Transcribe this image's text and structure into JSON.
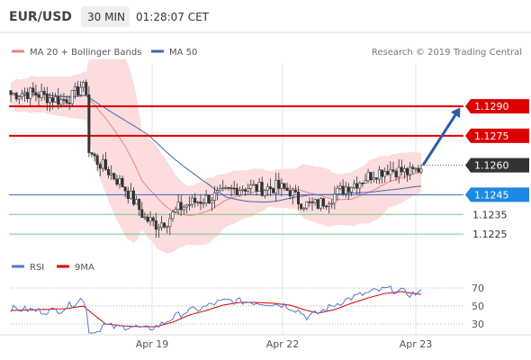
{
  "header": {
    "pair": "EUR/USD",
    "timeframe": "30 MIN",
    "time": "01:28:07 CET"
  },
  "legend": {
    "bollinger_label": "MA 20 + Bollinger Bands",
    "ma50_label": "MA 50",
    "rsi_label": "RSI",
    "rsi_ma_label": "9MA"
  },
  "credit": "Research © 2019 Trading Central",
  "colors": {
    "resistance": "#dd0000",
    "support": "#7cc77c",
    "pivot": "#3366cc",
    "pivot_badge": "#1e88e5",
    "price_badge": "#333333",
    "bollinger_fill": "#fcdcdc",
    "ma20": "#f08080",
    "ma50": "#4466aa",
    "forecast_arrow": "#2a5caa",
    "rsi": "#5577cc",
    "rsi_ma": "#dd0000"
  },
  "chart_data": [
    {
      "type": "candlestick",
      "title": "EUR/USD",
      "x_ticks": [
        "Apr 19",
        "Apr 22",
        "Apr 23"
      ],
      "ylim": [
        1.1215,
        1.1312
      ],
      "levels": [
        {
          "value": 1.129,
          "label": "1.1290",
          "role": "resistance"
        },
        {
          "value": 1.1275,
          "label": "1.1275",
          "role": "resistance"
        },
        {
          "value": 1.126,
          "label": "1.1260",
          "role": "last_price"
        },
        {
          "value": 1.1245,
          "label": "1.1245",
          "role": "pivot"
        },
        {
          "value": 1.1235,
          "label": "1.1235",
          "role": "support"
        },
        {
          "value": 1.1225,
          "label": "1.1225",
          "role": "support"
        }
      ],
      "forecast": {
        "from": 1.126,
        "to": 1.129
      },
      "close_anchors": [
        [
          0,
          1.1296
        ],
        [
          5,
          1.1297
        ],
        [
          10,
          1.1296
        ],
        [
          15,
          1.1294
        ],
        [
          18,
          1.1293
        ],
        [
          22,
          1.1295
        ],
        [
          25,
          1.13
        ],
        [
          27,
          1.1298
        ],
        [
          28,
          1.1267
        ],
        [
          31,
          1.1262
        ],
        [
          35,
          1.1257
        ],
        [
          40,
          1.125
        ],
        [
          45,
          1.124
        ],
        [
          48,
          1.1233
        ],
        [
          52,
          1.123
        ],
        [
          56,
          1.1232
        ],
        [
          60,
          1.1238
        ],
        [
          65,
          1.1241
        ],
        [
          70,
          1.1243
        ],
        [
          75,
          1.1245
        ],
        [
          80,
          1.1248
        ],
        [
          85,
          1.1249
        ],
        [
          90,
          1.1248
        ],
        [
          95,
          1.1249
        ],
        [
          100,
          1.1247
        ],
        [
          103,
          1.1242
        ],
        [
          106,
          1.124
        ],
        [
          110,
          1.124
        ],
        [
          115,
          1.1244
        ],
        [
          120,
          1.1249
        ],
        [
          125,
          1.1252
        ],
        [
          130,
          1.1256
        ],
        [
          135,
          1.1258
        ],
        [
          140,
          1.1257
        ],
        [
          143,
          1.1256
        ],
        [
          147,
          1.1259
        ]
      ],
      "candle_count": 148
    },
    {
      "type": "line",
      "title": "RSI",
      "ylim": [
        20,
        80
      ],
      "y_ticks": [
        70,
        50,
        30
      ],
      "series": [
        {
          "name": "RSI",
          "role": "rsi",
          "values": [
            [
              0,
              47
            ],
            [
              6,
              46
            ],
            [
              12,
              44
            ],
            [
              18,
              46
            ],
            [
              22,
              52
            ],
            [
              25,
              58
            ],
            [
              27,
              50
            ],
            [
              28,
              22
            ],
            [
              30,
              18
            ],
            [
              33,
              29
            ],
            [
              38,
              26
            ],
            [
              43,
              28
            ],
            [
              48,
              24
            ],
            [
              53,
              28
            ],
            [
              58,
              37
            ],
            [
              63,
              44
            ],
            [
              68,
              47
            ],
            [
              73,
              53
            ],
            [
              78,
              56
            ],
            [
              83,
              55
            ],
            [
              88,
              54
            ],
            [
              93,
              53
            ],
            [
              98,
              51
            ],
            [
              103,
              45
            ],
            [
              106,
              38
            ],
            [
              110,
              42
            ],
            [
              115,
              50
            ],
            [
              120,
              57
            ],
            [
              125,
              62
            ],
            [
              130,
              66
            ],
            [
              135,
              69
            ],
            [
              140,
              66
            ],
            [
              143,
              63
            ],
            [
              147,
              65
            ]
          ]
        },
        {
          "name": "9MA",
          "role": "rsi_ma",
          "values": [
            [
              0,
              45
            ],
            [
              10,
              46
            ],
            [
              20,
              47
            ],
            [
              26,
              50
            ],
            [
              29,
              42
            ],
            [
              34,
              30
            ],
            [
              40,
              28
            ],
            [
              46,
              27
            ],
            [
              52,
              27
            ],
            [
              58,
              32
            ],
            [
              64,
              40
            ],
            [
              70,
              45
            ],
            [
              76,
              51
            ],
            [
              82,
              54
            ],
            [
              88,
              54
            ],
            [
              94,
              53
            ],
            [
              100,
              51
            ],
            [
              105,
              46
            ],
            [
              110,
              42
            ],
            [
              116,
              46
            ],
            [
              122,
              53
            ],
            [
              128,
              59
            ],
            [
              134,
              64
            ],
            [
              140,
              66
            ],
            [
              144,
              64
            ],
            [
              147,
              63
            ]
          ]
        }
      ]
    }
  ]
}
